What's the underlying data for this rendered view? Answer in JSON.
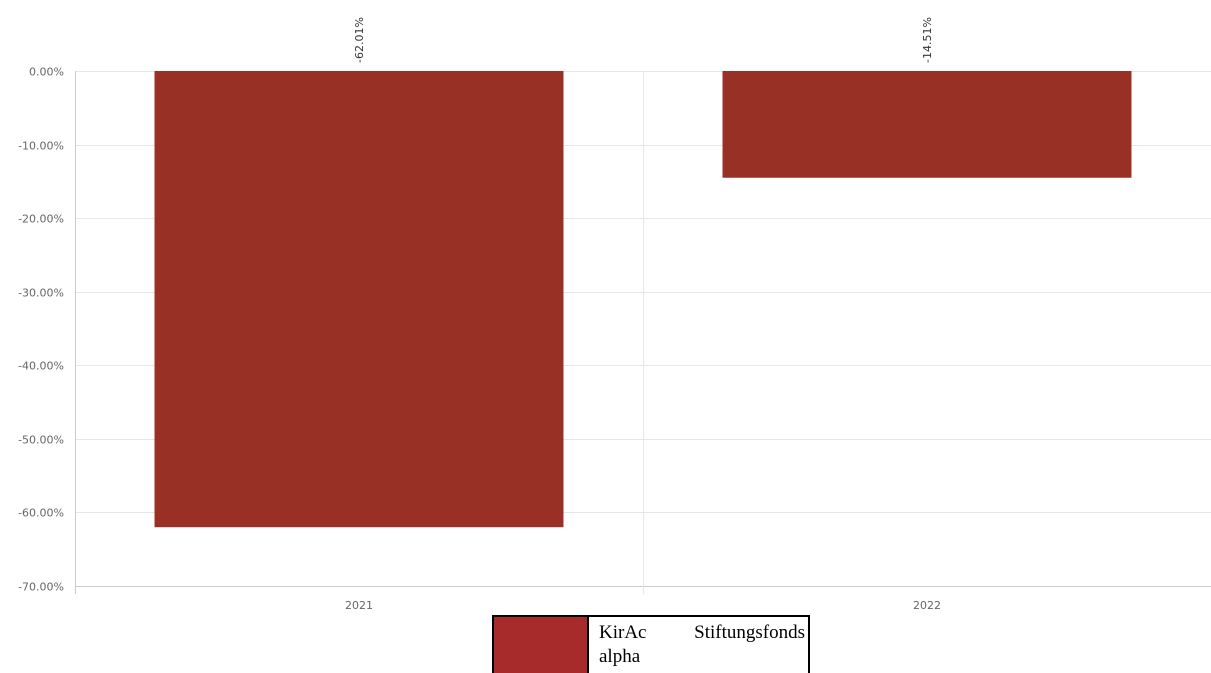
{
  "chart_data": {
    "type": "bar",
    "categories": [
      "2021",
      "2022"
    ],
    "series": [
      {
        "name": "KirAc Stiftungsfonds alpha",
        "values": [
          -62.01,
          -14.51
        ],
        "labels": [
          "-62.01%",
          "-14.51%"
        ]
      }
    ],
    "ylim": [
      -70,
      0
    ],
    "yticks": [
      0,
      -10,
      -20,
      -30,
      -40,
      -50,
      -60,
      -70
    ],
    "ytick_labels": [
      "0.00%",
      "-10.00%",
      "-20.00%",
      "-30.00%",
      "-40.00%",
      "-50.00%",
      "-60.00%",
      "-70.00%"
    ],
    "grid": true,
    "legend_position": "bottom-center"
  },
  "colors": {
    "bar": "#993025",
    "legend_swatch": "#a72b2b",
    "grid": "#e6e6e6",
    "axis": "#cccccc"
  }
}
